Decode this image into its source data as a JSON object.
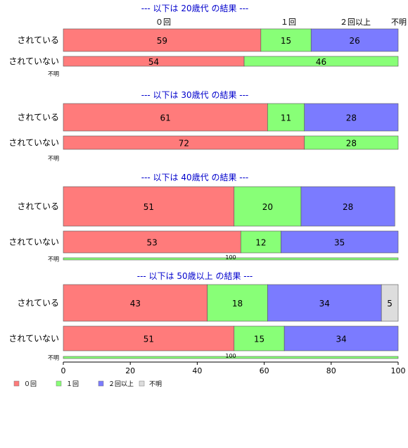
{
  "chart_data": {
    "type": "bar",
    "orientation": "horizontal-stacked",
    "xlim": [
      0,
      100
    ],
    "xticks": [
      0,
      20,
      40,
      60,
      80,
      100
    ],
    "colors": {
      "zero": "#ff7b7b",
      "one": "#88ff77",
      "twoplus": "#7b7bff",
      "unknown": "#dddddd"
    },
    "legend": [
      "０回",
      "１回",
      "２回以上",
      "不明"
    ],
    "column_headers": [
      "０回",
      "１回",
      "２回以上",
      "不明"
    ],
    "groups": [
      {
        "title": "--- 以下は 20歳代 の結果 ---",
        "rows": [
          {
            "label": "されている",
            "values": [
              59,
              15,
              26,
              0
            ],
            "texts": [
              "59",
              "15",
              "26",
              ""
            ]
          },
          {
            "label": "されていない",
            "values": [
              54,
              46,
              0,
              0
            ],
            "texts": [
              "54",
              "46",
              "",
              ""
            ]
          },
          {
            "label": "不明",
            "values": [],
            "texts": []
          }
        ]
      },
      {
        "title": "--- 以下は 30歳代 の結果 ---",
        "rows": [
          {
            "label": "されている",
            "values": [
              61,
              11,
              28,
              0
            ],
            "texts": [
              "61",
              "11",
              "28",
              ""
            ]
          },
          {
            "label": "されていない",
            "values": [
              72,
              28,
              0,
              0
            ],
            "texts": [
              "72",
              "28",
              "",
              ""
            ]
          },
          {
            "label": "不明",
            "values": [],
            "texts": []
          }
        ]
      },
      {
        "title": "--- 以下は 40歳代 の結果 ---",
        "rows": [
          {
            "label": "されている",
            "values": [
              51,
              20,
              28,
              0
            ],
            "texts": [
              "51",
              "20",
              "28",
              ""
            ]
          },
          {
            "label": "されていない",
            "values": [
              53,
              12,
              35,
              0
            ],
            "texts": [
              "53",
              "12",
              "35",
              ""
            ]
          },
          {
            "label": "不明",
            "values": [
              0,
              100,
              0,
              0
            ],
            "texts": [
              "",
              "100",
              "",
              ""
            ]
          }
        ]
      },
      {
        "title": "--- 以下は 50歳以上 の結果 ---",
        "rows": [
          {
            "label": "されている",
            "values": [
              43,
              18,
              34,
              5
            ],
            "texts": [
              "43",
              "18",
              "34",
              "5"
            ]
          },
          {
            "label": "されていない",
            "values": [
              51,
              15,
              34,
              0
            ],
            "texts": [
              "51",
              "15",
              "34",
              ""
            ]
          },
          {
            "label": "不明",
            "values": [
              0,
              100,
              0,
              0
            ],
            "texts": [
              "",
              "100",
              "",
              ""
            ]
          }
        ]
      }
    ]
  }
}
